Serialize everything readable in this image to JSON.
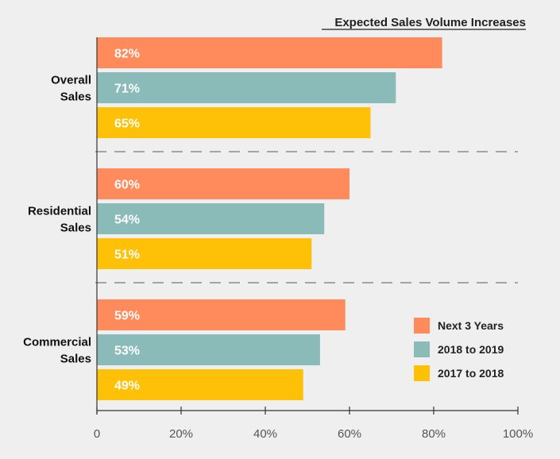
{
  "chart_data": {
    "type": "bar",
    "orientation": "horizontal",
    "title": "Expected Sales Volume Increases",
    "categories": [
      [
        "Overall",
        "Sales"
      ],
      [
        "Residential",
        "Sales"
      ],
      [
        "Commercial",
        "Sales"
      ]
    ],
    "series": [
      {
        "name": "Next 3 Years",
        "color": "#ff8a5c",
        "values": [
          82,
          60,
          59
        ],
        "labels": [
          "82%",
          "60%",
          "59%"
        ]
      },
      {
        "name": "2018 to 2019",
        "color": "#8bbbb8",
        "values": [
          71,
          54,
          53
        ],
        "labels": [
          "71%",
          "54%",
          "53%"
        ]
      },
      {
        "name": "2017 to 2018",
        "color": "#ffc107",
        "values": [
          65,
          51,
          49
        ],
        "labels": [
          "65%",
          "51%",
          "49%"
        ]
      }
    ],
    "xlim": [
      0,
      100
    ],
    "xticks": [
      0,
      20,
      40,
      60,
      80,
      100
    ],
    "xtick_labels": [
      "0",
      "20%",
      "40%",
      "60%",
      "80%",
      "100%"
    ],
    "group_separators": "dashed",
    "legend_position": "bottom-right",
    "grid": false
  }
}
